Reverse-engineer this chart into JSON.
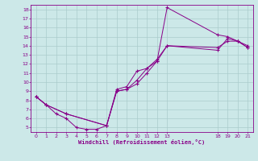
{
  "xlabel": "Windchill (Refroidissement éolien,°C)",
  "bg_color": "#cce8e8",
  "grid_color": "#aacccc",
  "line_color": "#880088",
  "xlim": [
    -0.5,
    21.5
  ],
  "ylim": [
    4.5,
    18.5
  ],
  "xticks": [
    0,
    1,
    2,
    3,
    4,
    5,
    6,
    7,
    8,
    9,
    10,
    11,
    12,
    13,
    18,
    19,
    20,
    21
  ],
  "yticks": [
    5,
    6,
    7,
    8,
    9,
    10,
    11,
    12,
    13,
    14,
    15,
    16,
    17,
    18
  ],
  "line1_x": [
    0,
    1,
    2,
    3,
    4,
    5,
    6,
    7,
    8,
    9,
    10,
    11,
    12,
    13,
    18,
    19,
    20,
    21
  ],
  "line1_y": [
    8.4,
    7.5,
    6.5,
    6.0,
    5.0,
    4.8,
    4.8,
    5.2,
    9.2,
    9.5,
    11.2,
    11.5,
    12.3,
    18.2,
    15.2,
    15.0,
    14.5,
    13.8
  ],
  "line2_x": [
    0,
    1,
    3,
    7,
    8,
    9,
    10,
    11,
    12,
    13,
    18,
    19,
    20,
    21
  ],
  "line2_y": [
    8.4,
    7.5,
    6.5,
    5.2,
    9.0,
    9.2,
    9.8,
    11.0,
    12.3,
    14.0,
    13.5,
    14.8,
    14.5,
    13.8
  ],
  "line3_x": [
    0,
    1,
    3,
    7,
    8,
    9,
    10,
    11,
    12,
    13,
    18,
    19,
    20,
    21
  ],
  "line3_y": [
    8.4,
    7.5,
    6.5,
    5.2,
    9.0,
    9.2,
    10.2,
    11.5,
    12.5,
    14.0,
    13.8,
    14.5,
    14.5,
    14.0
  ]
}
